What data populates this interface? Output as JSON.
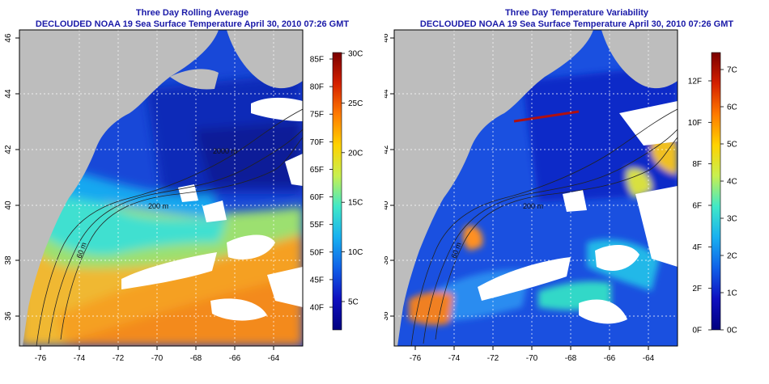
{
  "colors": {
    "land": "#bdbdbd",
    "cloud": "#ffffff",
    "title": "#1a1aa8",
    "contour": "#222222",
    "grid": "#ffffff"
  },
  "axes": {
    "lon_ticks": [
      "-76",
      "-74",
      "-72",
      "-70",
      "-68",
      "-66",
      "-64"
    ],
    "lat_ticks": [
      "36",
      "38",
      "40",
      "42",
      "44",
      "46"
    ]
  },
  "contour_labels": [
    "2000 m",
    "200 m",
    "60 m"
  ],
  "left_panel": {
    "title_line1": "Three Day Rolling Average",
    "title_line2": "DECLOUDED NOAA 19 Sea Surface Temperature April 30, 2010 07:26 GMT",
    "colorbar_left_labels": [
      "85F",
      "80F",
      "75F",
      "70F",
      "65F",
      "60F",
      "55F",
      "50F",
      "45F",
      "40F"
    ],
    "colorbar_right_labels": [
      "30C",
      "25C",
      "20C",
      "15C",
      "10C",
      "5C"
    ],
    "colorbar_stops": [
      "#7a0000",
      "#d42000",
      "#ff7a00",
      "#ffd200",
      "#c8f050",
      "#40e8c8",
      "#18b0f0",
      "#1060e8",
      "#1010c0",
      "#000080"
    ]
  },
  "right_panel": {
    "title_line1": "Three Day Temperature Variability",
    "title_line2": "DECLOUDED NOAA 19 Sea Surface Temperature April 30, 2010 07:26 GMT",
    "colorbar_left_labels": [
      "12F",
      "10F",
      "8F",
      "6F",
      "4F",
      "2F",
      "0F"
    ],
    "colorbar_right_labels": [
      "7C",
      "6C",
      "5C",
      "4C",
      "3C",
      "2C",
      "1C",
      "0C"
    ],
    "colorbar_stops": [
      "#7a0000",
      "#d42000",
      "#ff7a00",
      "#ffd200",
      "#c8f050",
      "#40e8c8",
      "#18b0f0",
      "#1060e8",
      "#1010c0",
      "#000080"
    ]
  }
}
